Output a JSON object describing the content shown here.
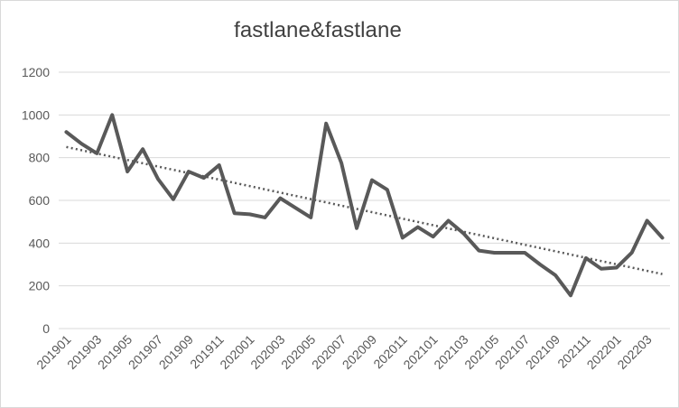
{
  "chart_data": {
    "type": "line",
    "title": "fastlane&fastlane",
    "xlabel": "",
    "ylabel": "",
    "ylim": [
      0,
      1200
    ],
    "yticks": [
      0,
      200,
      400,
      600,
      800,
      1000,
      1200
    ],
    "grid": true,
    "legend": "none",
    "x": [
      "201901",
      "201902",
      "201903",
      "201904",
      "201905",
      "201906",
      "201907",
      "201908",
      "201909",
      "201910",
      "201911",
      "201912",
      "202001",
      "202002",
      "202003",
      "202004",
      "202005",
      "202006",
      "202007",
      "202008",
      "202009",
      "202010",
      "202011",
      "202012",
      "202101",
      "202102",
      "202103",
      "202104",
      "202105",
      "202106",
      "202107",
      "202108",
      "202109",
      "202110",
      "202111",
      "202112",
      "202201",
      "202202",
      "202203",
      "202204"
    ],
    "xtick_labels": [
      "201901",
      "201903",
      "201905",
      "201907",
      "201909",
      "201911",
      "202001",
      "202003",
      "202005",
      "202007",
      "202009",
      "202011",
      "202101",
      "202103",
      "202105",
      "202107",
      "202109",
      "202111",
      "202201",
      "202203"
    ],
    "series": [
      {
        "values": [
          920,
          865,
          820,
          1000,
          735,
          840,
          700,
          605,
          735,
          705,
          765,
          540,
          535,
          520,
          610,
          565,
          520,
          960,
          775,
          470,
          695,
          650,
          425,
          475,
          430,
          505,
          445,
          365,
          355,
          355,
          355,
          300,
          250,
          155,
          330,
          280,
          285,
          355,
          505,
          425
        ],
        "color": "#595959"
      }
    ],
    "trendline": {
      "type": "linear",
      "start": 850,
      "end": 255,
      "style": "dotted",
      "color": "#595959"
    }
  }
}
